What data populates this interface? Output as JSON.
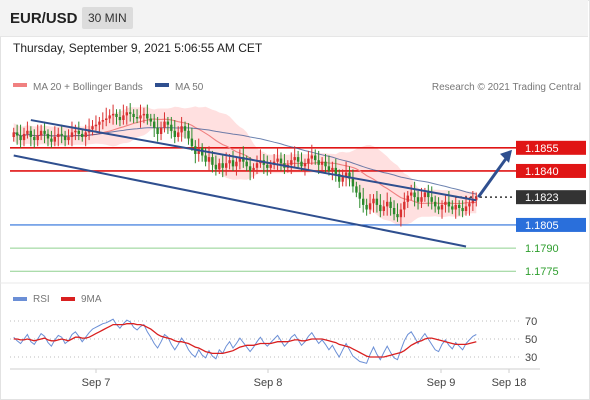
{
  "header": {
    "symbol": "EUR/USD",
    "timeframe": "30 MIN",
    "datetime": "Thursday, September 9, 2021 5:06:55 AM CET"
  },
  "legend": {
    "ma20": "MA 20 + Bollinger Bands",
    "ma50": "MA 50",
    "credit": "Research © 2021 Trading Central"
  },
  "rsi_legend": {
    "rsi": "RSI",
    "ma": "9MA"
  },
  "colors": {
    "bull": "#d93030",
    "bear": "#2b8a2b",
    "ma20": "#f08080",
    "bollinger": "#ffd6d6",
    "ma50": "#2f4f8f",
    "trend": "#2f4f8f",
    "resistance": "#e01515",
    "support_blue": "#2a6fdb",
    "support_green": "#2e9e2e",
    "last_price": "#333333",
    "rsi": "#6b8fd6",
    "rsi_ma": "#d92020"
  },
  "chart_data": [
    {
      "type": "candlestick",
      "title": "",
      "x_ticks": [
        "Sep 7",
        "Sep 8",
        "Sep 9",
        "Sep 18"
      ],
      "ylim": [
        1.1768,
        1.1886
      ],
      "levels": [
        {
          "value": 1.1855,
          "label": "1.1855",
          "kind": "resistance"
        },
        {
          "value": 1.184,
          "label": "1.1840",
          "kind": "resistance"
        },
        {
          "value": 1.1823,
          "label": "1.1823",
          "kind": "last"
        },
        {
          "value": 1.1805,
          "label": "1.1805",
          "kind": "support_blue"
        },
        {
          "value": 1.179,
          "label": "1.1790",
          "kind": "support_green"
        },
        {
          "value": 1.1775,
          "label": "1.1775",
          "kind": "support_green"
        }
      ],
      "close": [
        1.1865,
        1.1863,
        1.186,
        1.1864,
        1.1866,
        1.1862,
        1.186,
        1.1863,
        1.1866,
        1.1864,
        1.1861,
        1.1859,
        1.1862,
        1.1864,
        1.1863,
        1.186,
        1.1862,
        1.1865,
        1.1866,
        1.1864,
        1.1862,
        1.1865,
        1.1867,
        1.1869,
        1.187,
        1.1872,
        1.1873,
        1.1874,
        1.1876,
        1.1877,
        1.1875,
        1.1873,
        1.1876,
        1.1878,
        1.1877,
        1.1875,
        1.1874,
        1.1876,
        1.1877,
        1.1874,
        1.1872,
        1.1868,
        1.1864,
        1.1868,
        1.1872,
        1.187,
        1.1866,
        1.1862,
        1.1865,
        1.1869,
        1.1866,
        1.1861,
        1.1856,
        1.1851,
        1.1855,
        1.185,
        1.1846,
        1.1849,
        1.1844,
        1.1841,
        1.1845,
        1.1842,
        1.1845,
        1.1847,
        1.1843,
        1.1846,
        1.1849,
        1.1846,
        1.1843,
        1.184,
        1.1842,
        1.1845,
        1.1847,
        1.1844,
        1.1842,
        1.1844,
        1.1846,
        1.1848,
        1.1845,
        1.1842,
        1.1844,
        1.1847,
        1.1849,
        1.1846,
        1.1843,
        1.1845,
        1.1848,
        1.185,
        1.1847,
        1.1844,
        1.1846,
        1.1843,
        1.184,
        1.1842,
        1.1838,
        1.1833,
        1.1836,
        1.1839,
        1.1835,
        1.183,
        1.1826,
        1.1822,
        1.1818,
        1.1815,
        1.1819,
        1.1822,
        1.1818,
        1.1814,
        1.1817,
        1.182,
        1.1816,
        1.1812,
        1.181,
        1.1815,
        1.182,
        1.1824,
        1.1826,
        1.1823,
        1.182,
        1.1823,
        1.1826,
        1.1823,
        1.182,
        1.1817,
        1.1815,
        1.1818,
        1.182,
        1.1817,
        1.1815,
        1.1818,
        1.1816,
        1.1814,
        1.1817,
        1.1819,
        1.1821,
        1.1823
      ],
      "open": [
        1.1862,
        1.1865,
        1.1863,
        1.186,
        1.1864,
        1.1866,
        1.1862,
        1.186,
        1.1863,
        1.1866,
        1.1864,
        1.1861,
        1.1859,
        1.1862,
        1.1864,
        1.1863,
        1.186,
        1.1862,
        1.1865,
        1.1866,
        1.1864,
        1.1862,
        1.1865,
        1.1867,
        1.1869,
        1.187,
        1.1872,
        1.1873,
        1.1874,
        1.1876,
        1.1877,
        1.1875,
        1.1873,
        1.1876,
        1.1878,
        1.1877,
        1.1875,
        1.1874,
        1.1876,
        1.1877,
        1.1874,
        1.1872,
        1.1868,
        1.1864,
        1.1868,
        1.1872,
        1.187,
        1.1866,
        1.1862,
        1.1865,
        1.1869,
        1.1866,
        1.1861,
        1.1856,
        1.1851,
        1.1855,
        1.185,
        1.1846,
        1.1849,
        1.1844,
        1.1841,
        1.1845,
        1.1842,
        1.1845,
        1.1847,
        1.1843,
        1.1846,
        1.1849,
        1.1846,
        1.1843,
        1.184,
        1.1842,
        1.1845,
        1.1847,
        1.1844,
        1.1842,
        1.1844,
        1.1846,
        1.1848,
        1.1845,
        1.1842,
        1.1844,
        1.1847,
        1.1849,
        1.1846,
        1.1843,
        1.1845,
        1.1848,
        1.185,
        1.1847,
        1.1844,
        1.1846,
        1.1843,
        1.184,
        1.1842,
        1.1838,
        1.1833,
        1.1836,
        1.1839,
        1.1835,
        1.183,
        1.1826,
        1.1822,
        1.1818,
        1.1815,
        1.1819,
        1.1822,
        1.1818,
        1.1814,
        1.1817,
        1.182,
        1.1816,
        1.1812,
        1.181,
        1.1815,
        1.182,
        1.1824,
        1.1826,
        1.1823,
        1.182,
        1.1823,
        1.1826,
        1.1823,
        1.182,
        1.1817,
        1.1815,
        1.1818,
        1.182,
        1.1817,
        1.1815,
        1.1818,
        1.1816,
        1.1814,
        1.1817,
        1.1819,
        1.1821
      ]
    },
    {
      "type": "line",
      "title": "",
      "x_ticks": [
        "Sep 7",
        "Sep 8",
        "Sep 9",
        "Sep 18"
      ],
      "ylim": [
        20,
        80
      ],
      "y_ticks": [
        70,
        50,
        30
      ],
      "series": [
        {
          "name": "RSI",
          "values": [
            52,
            48,
            45,
            50,
            55,
            47,
            44,
            50,
            56,
            53,
            46,
            42,
            49,
            54,
            52,
            45,
            48,
            55,
            58,
            53,
            47,
            52,
            57,
            61,
            63,
            65,
            67,
            68,
            70,
            72,
            66,
            62,
            67,
            71,
            69,
            63,
            60,
            64,
            66,
            58,
            52,
            45,
            40,
            47,
            55,
            52,
            44,
            38,
            44,
            51,
            46,
            38,
            33,
            30,
            38,
            32,
            29,
            37,
            31,
            28,
            38,
            34,
            42,
            47,
            40,
            45,
            51,
            46,
            41,
            36,
            41,
            47,
            52,
            46,
            42,
            46,
            50,
            54,
            48,
            42,
            46,
            52,
            55,
            49,
            43,
            47,
            53,
            57,
            51,
            45,
            49,
            44,
            38,
            43,
            36,
            30,
            38,
            45,
            38,
            31,
            28,
            25,
            24,
            23,
            33,
            41,
            33,
            27,
            35,
            42,
            35,
            29,
            27,
            38,
            48,
            55,
            58,
            52,
            45,
            51,
            56,
            50,
            44,
            38,
            36,
            44,
            49,
            43,
            39,
            46,
            42,
            38,
            45,
            49,
            53,
            55
          ]
        },
        {
          "name": "9MA",
          "values": [
            50,
            50,
            49,
            49,
            50,
            49,
            48,
            49,
            50,
            51,
            49,
            48,
            48,
            49,
            50,
            49,
            48,
            50,
            52,
            52,
            51,
            51,
            52,
            54,
            56,
            58,
            60,
            62,
            64,
            66,
            66,
            66,
            66,
            67,
            67,
            67,
            66,
            66,
            65,
            63,
            61,
            58,
            55,
            53,
            52,
            51,
            50,
            48,
            47,
            47,
            46,
            45,
            43,
            41,
            40,
            38,
            36,
            35,
            34,
            34,
            34,
            34,
            35,
            36,
            37,
            39,
            41,
            42,
            43,
            43,
            43,
            44,
            45,
            45,
            45,
            45,
            46,
            47,
            47,
            47,
            47,
            48,
            49,
            49,
            48,
            48,
            49,
            50,
            50,
            50,
            50,
            49,
            48,
            47,
            46,
            44,
            43,
            42,
            41,
            39,
            37,
            35,
            33,
            31,
            30,
            30,
            30,
            30,
            30,
            31,
            32,
            33,
            34,
            35,
            37,
            40,
            43,
            45,
            47,
            48,
            50,
            51,
            51,
            50,
            49,
            48,
            47,
            46,
            45,
            44,
            44,
            44,
            44,
            45,
            46,
            47
          ]
        }
      ]
    }
  ]
}
